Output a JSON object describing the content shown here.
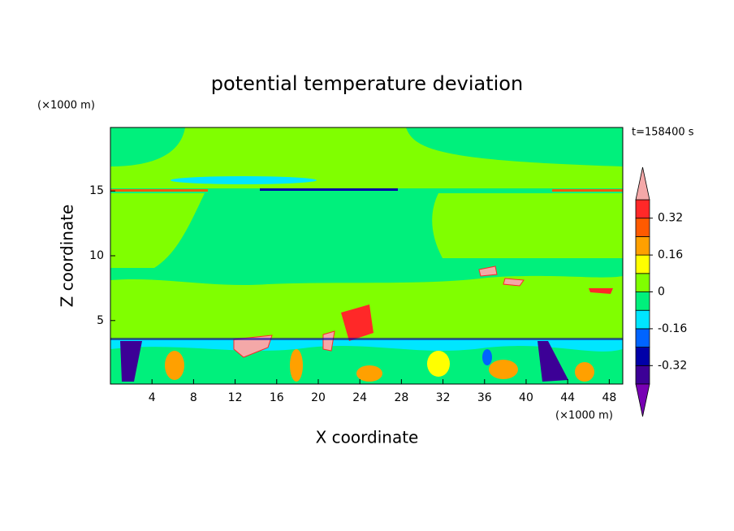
{
  "chart_data": {
    "type": "contour",
    "title": "potential temperature deviation",
    "x_label": "X coordinate",
    "y_label": "Z coordinate",
    "x_unit": "(×1000 m)",
    "y_unit": "(×1000 m)",
    "time_label": "t=158400 s",
    "xlim": [
      0,
      49.3
    ],
    "ylim": [
      0.1,
      19.9
    ],
    "xticks": [
      4,
      8,
      12,
      16,
      20,
      24,
      28,
      32,
      36,
      40,
      44,
      48
    ],
    "yticks": [
      5,
      10,
      15
    ],
    "levels": [
      -0.4,
      -0.32,
      -0.24,
      -0.16,
      -0.08,
      0,
      0.08,
      0.16,
      0.24,
      0.32,
      0.4
    ],
    "colors": [
      "#7800b4",
      "#3c0096",
      "#0000a8",
      "#0064ff",
      "#00e6ff",
      "#00f07c",
      "#80ff00",
      "#ffff00",
      "#ffa000",
      "#ff5a00",
      "#ff2828",
      "#f4a8a8"
    ],
    "colorbar_ticks": [
      0.32,
      0.16,
      0,
      -0.16,
      -0.32
    ]
  }
}
